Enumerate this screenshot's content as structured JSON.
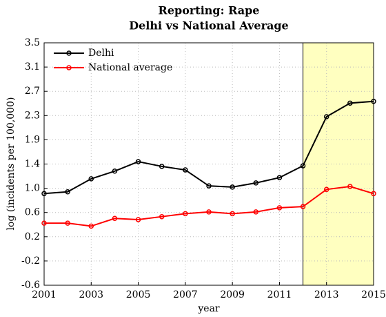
{
  "chart_data": {
    "type": "line",
    "title": [
      "Reporting: Rape",
      "Delhi vs National Average"
    ],
    "xlabel": "year",
    "ylabel": "log (incidents per 100,000)",
    "x": [
      2001,
      2002,
      2003,
      2004,
      2005,
      2006,
      2007,
      2008,
      2009,
      2010,
      2011,
      2012,
      2013,
      2014,
      2015
    ],
    "series": [
      {
        "name": "Delhi",
        "color": "#000000",
        "values": [
          0.95,
          0.98,
          1.2,
          1.33,
          1.49,
          1.41,
          1.35,
          1.08,
          1.06,
          1.13,
          1.22,
          1.42,
          2.25,
          2.48,
          2.51
        ]
      },
      {
        "name": "National average",
        "color": "#ff0000",
        "values": [
          0.45,
          0.45,
          0.4,
          0.53,
          0.51,
          0.56,
          0.61,
          0.64,
          0.61,
          0.64,
          0.71,
          0.73,
          1.02,
          1.07,
          0.95
        ]
      }
    ],
    "xlim": [
      2001,
      2015
    ],
    "xticks": [
      2001,
      2003,
      2005,
      2007,
      2009,
      2011,
      2013,
      2015
    ],
    "ylim": [
      -0.6,
      3.5
    ],
    "yticks": [
      -0.6,
      {
        "value": -0.19,
        "label": "-0.2"
      },
      {
        "value": 0.22,
        "label": "0.2"
      },
      {
        "value": 0.63,
        "label": "0.6"
      },
      {
        "value": 1.04,
        "label": "1.0"
      },
      {
        "value": 1.45,
        "label": "1.4"
      },
      {
        "value": 1.86,
        "label": "1.9"
      },
      {
        "value": 2.27,
        "label": "2.3"
      },
      {
        "value": 2.68,
        "label": "2.7"
      },
      {
        "value": 3.09,
        "label": "3.1"
      },
      3.5
    ],
    "highlight_x": [
      2012,
      2015
    ],
    "highlight_color": "#ffffc0",
    "grid": true,
    "legend": "upper left"
  }
}
